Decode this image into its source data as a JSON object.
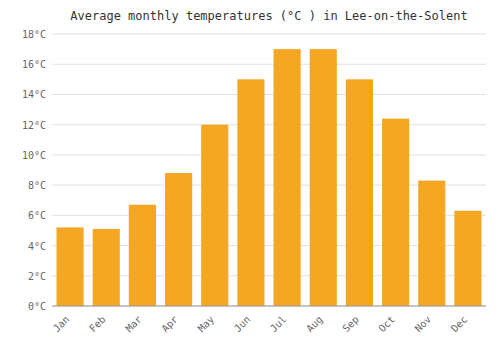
{
  "chart_data": {
    "type": "bar",
    "title": "Average monthly temperatures (°C ) in Lee-on-the-Solent",
    "categories": [
      "Jan",
      "Feb",
      "Mar",
      "Apr",
      "May",
      "Jun",
      "Jul",
      "Aug",
      "Sep",
      "Oct",
      "Nov",
      "Dec"
    ],
    "values": [
      5.2,
      5.1,
      6.7,
      8.8,
      12.0,
      15.0,
      17.0,
      17.0,
      15.0,
      12.4,
      8.3,
      6.3
    ],
    "color": "#F5A623",
    "ylim": [
      0,
      18
    ],
    "yticks": [
      {
        "value": 0,
        "label": "0°C"
      },
      {
        "value": 2,
        "label": "2°C"
      },
      {
        "value": 4,
        "label": "4°C"
      },
      {
        "value": 6,
        "label": "6°C"
      },
      {
        "value": 8,
        "label": "8°C"
      },
      {
        "value": 10,
        "label": "10°C"
      },
      {
        "value": 12,
        "label": "12°C"
      },
      {
        "value": 14,
        "label": "14°C"
      },
      {
        "value": 16,
        "label": "16°C"
      },
      {
        "value": 18,
        "label": "18°C"
      }
    ],
    "grid": true
  }
}
